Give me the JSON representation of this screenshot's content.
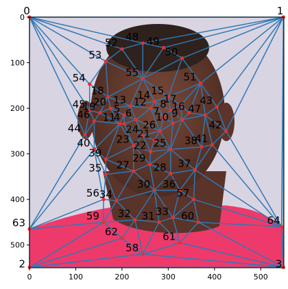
{
  "image": {
    "width": 550,
    "height": 550
  },
  "x_ticks": [
    "0",
    "100",
    "200",
    "300",
    "400",
    "500"
  ],
  "y_ticks": [
    "0",
    "100",
    "200",
    "300",
    "400",
    "500"
  ],
  "colors": {
    "mesh": "#2f78b4",
    "point": "#e8302a",
    "background_top": "#d9d4e2",
    "shirt": "#ee3a6a",
    "skin": "#6a3f31"
  },
  "points": [
    {
      "id": "0",
      "x": 0,
      "y": 0
    },
    {
      "id": "1",
      "x": 549,
      "y": 0
    },
    {
      "id": "2",
      "x": 0,
      "y": 549
    },
    {
      "id": "3",
      "x": 549,
      "y": 549
    },
    {
      "id": "4",
      "x": 205,
      "y": 234
    },
    {
      "id": "5",
      "x": 205,
      "y": 215
    },
    {
      "id": "6",
      "x": 230,
      "y": 225
    },
    {
      "id": "7",
      "x": 290,
      "y": 220
    },
    {
      "id": "8",
      "x": 305,
      "y": 204
    },
    {
      "id": "9",
      "x": 330,
      "y": 225
    },
    {
      "id": "10",
      "x": 310,
      "y": 233
    },
    {
      "id": "11",
      "x": 195,
      "y": 234
    },
    {
      "id": "12",
      "x": 262,
      "y": 200
    },
    {
      "id": "13",
      "x": 218,
      "y": 195
    },
    {
      "id": "14",
      "x": 270,
      "y": 185
    },
    {
      "id": "15",
      "x": 300,
      "y": 175
    },
    {
      "id": "16",
      "x": 345,
      "y": 210
    },
    {
      "id": "17",
      "x": 327,
      "y": 193
    },
    {
      "id": "18",
      "x": 170,
      "y": 175
    },
    {
      "id": "19",
      "x": 152,
      "y": 210
    },
    {
      "id": "20",
      "x": 175,
      "y": 200
    },
    {
      "id": "21",
      "x": 270,
      "y": 270
    },
    {
      "id": "22",
      "x": 262,
      "y": 295
    },
    {
      "id": "23",
      "x": 225,
      "y": 282
    },
    {
      "id": "24",
      "x": 245,
      "y": 260
    },
    {
      "id": "25",
      "x": 305,
      "y": 290
    },
    {
      "id": "26",
      "x": 282,
      "y": 250
    },
    {
      "id": "27",
      "x": 225,
      "y": 338
    },
    {
      "id": "28",
      "x": 305,
      "y": 343
    },
    {
      "id": "29",
      "x": 260,
      "y": 323
    },
    {
      "id": "30",
      "x": 270,
      "y": 380
    },
    {
      "id": "31",
      "x": 280,
      "y": 450
    },
    {
      "id": "32",
      "x": 228,
      "y": 445
    },
    {
      "id": "33",
      "x": 310,
      "y": 440
    },
    {
      "id": "34",
      "x": 188,
      "y": 403
    },
    {
      "id": "35",
      "x": 165,
      "y": 345
    },
    {
      "id": "36",
      "x": 325,
      "y": 380
    },
    {
      "id": "37",
      "x": 358,
      "y": 335
    },
    {
      "id": "38",
      "x": 372,
      "y": 285
    },
    {
      "id": "39",
      "x": 165,
      "y": 312
    },
    {
      "id": "40",
      "x": 140,
      "y": 290
    },
    {
      "id": "41",
      "x": 395,
      "y": 280
    },
    {
      "id": "42",
      "x": 425,
      "y": 250
    },
    {
      "id": "43",
      "x": 405,
      "y": 197
    },
    {
      "id": "44",
      "x": 120,
      "y": 258
    },
    {
      "id": "45",
      "x": 130,
      "y": 205
    },
    {
      "id": "46",
      "x": 140,
      "y": 228
    },
    {
      "id": "47",
      "x": 380,
      "y": 215
    },
    {
      "id": "48",
      "x": 245,
      "y": 57
    },
    {
      "id": "49",
      "x": 290,
      "y": 67
    },
    {
      "id": "50",
      "x": 330,
      "y": 90
    },
    {
      "id": "51",
      "x": 370,
      "y": 145
    },
    {
      "id": "52",
      "x": 200,
      "y": 70
    },
    {
      "id": "53",
      "x": 165,
      "y": 97
    },
    {
      "id": "54",
      "x": 130,
      "y": 147
    },
    {
      "id": "55",
      "x": 245,
      "y": 135
    },
    {
      "id": "56",
      "x": 160,
      "y": 400
    },
    {
      "id": "57",
      "x": 355,
      "y": 400
    },
    {
      "id": "58",
      "x": 245,
      "y": 520
    },
    {
      "id": "59",
      "x": 160,
      "y": 450
    },
    {
      "id": "60",
      "x": 365,
      "y": 450
    },
    {
      "id": "61",
      "x": 325,
      "y": 495
    },
    {
      "id": "62",
      "x": 200,
      "y": 485
    },
    {
      "id": "63",
      "x": 0,
      "y": 465
    },
    {
      "id": "64",
      "x": 545,
      "y": 460
    }
  ]
}
